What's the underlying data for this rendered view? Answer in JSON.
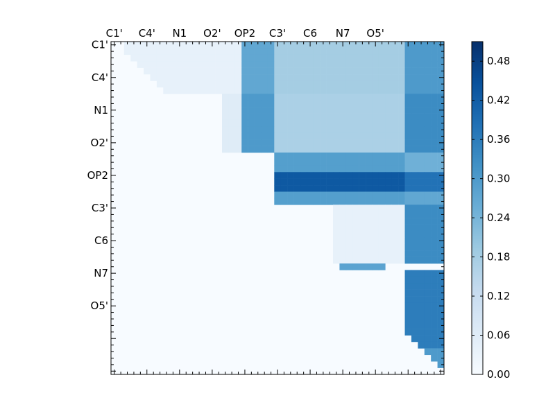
{
  "chart_data": {
    "type": "heatmap",
    "title": "",
    "xlabel": "",
    "ylabel": "",
    "n": 51,
    "tick_step": 5,
    "tick_labels": [
      "C1'",
      "C4'",
      "N1",
      "O2'",
      "OP2",
      "C3'",
      "C6",
      "N7",
      "O5'"
    ],
    "colorbar": {
      "min": 0.0,
      "max": 0.51,
      "ticks": [
        "0.00",
        "0.06",
        "0.12",
        "0.18",
        "0.24",
        "0.30",
        "0.36",
        "0.42",
        "0.48"
      ],
      "colormap": "Blues",
      "low_color": "#f7fbff",
      "high_color": "#08306b"
    },
    "grid": false,
    "values_note": "upper-triangular blocks; values read from color",
    "blocks": [
      {
        "rows": [
          0,
          8
        ],
        "cols": [
          2,
          20
        ],
        "value": 0.04
      },
      {
        "rows": [
          0,
          8
        ],
        "cols": [
          20,
          25
        ],
        "value": 0.27
      },
      {
        "rows": [
          0,
          8
        ],
        "cols": [
          25,
          45
        ],
        "value": 0.18
      },
      {
        "rows": [
          0,
          8
        ],
        "cols": [
          45,
          51
        ],
        "value": 0.3
      },
      {
        "rows": [
          8,
          17
        ],
        "cols": [
          17,
          20
        ],
        "value": 0.06
      },
      {
        "rows": [
          8,
          17
        ],
        "cols": [
          20,
          25
        ],
        "value": 0.3
      },
      {
        "rows": [
          8,
          17
        ],
        "cols": [
          25,
          45
        ],
        "value": 0.17
      },
      {
        "rows": [
          8,
          17
        ],
        "cols": [
          45,
          51
        ],
        "value": 0.33
      },
      {
        "rows": [
          17,
          20
        ],
        "cols": [
          25,
          45
        ],
        "value": 0.29
      },
      {
        "rows": [
          17,
          20
        ],
        "cols": [
          45,
          51
        ],
        "value": 0.25
      },
      {
        "rows": [
          20,
          23
        ],
        "cols": [
          25,
          45
        ],
        "value": 0.43
      },
      {
        "rows": [
          20,
          23
        ],
        "cols": [
          45,
          51
        ],
        "value": 0.38
      },
      {
        "rows": [
          23,
          25
        ],
        "cols": [
          25,
          45
        ],
        "value": 0.29
      },
      {
        "rows": [
          23,
          25
        ],
        "cols": [
          45,
          51
        ],
        "value": 0.27
      },
      {
        "rows": [
          25,
          34
        ],
        "cols": [
          34,
          45
        ],
        "value": 0.04
      },
      {
        "rows": [
          25,
          34
        ],
        "cols": [
          45,
          51
        ],
        "value": 0.33
      },
      {
        "rows": [
          34,
          35
        ],
        "cols": [
          34,
          42
        ],
        "value": 0.28
      },
      {
        "rows": [
          35,
          47
        ],
        "cols": [
          45,
          51
        ],
        "value": 0.36
      },
      {
        "rows": [
          47,
          51
        ],
        "cols": [
          47,
          51
        ],
        "value": 0.3
      }
    ]
  }
}
